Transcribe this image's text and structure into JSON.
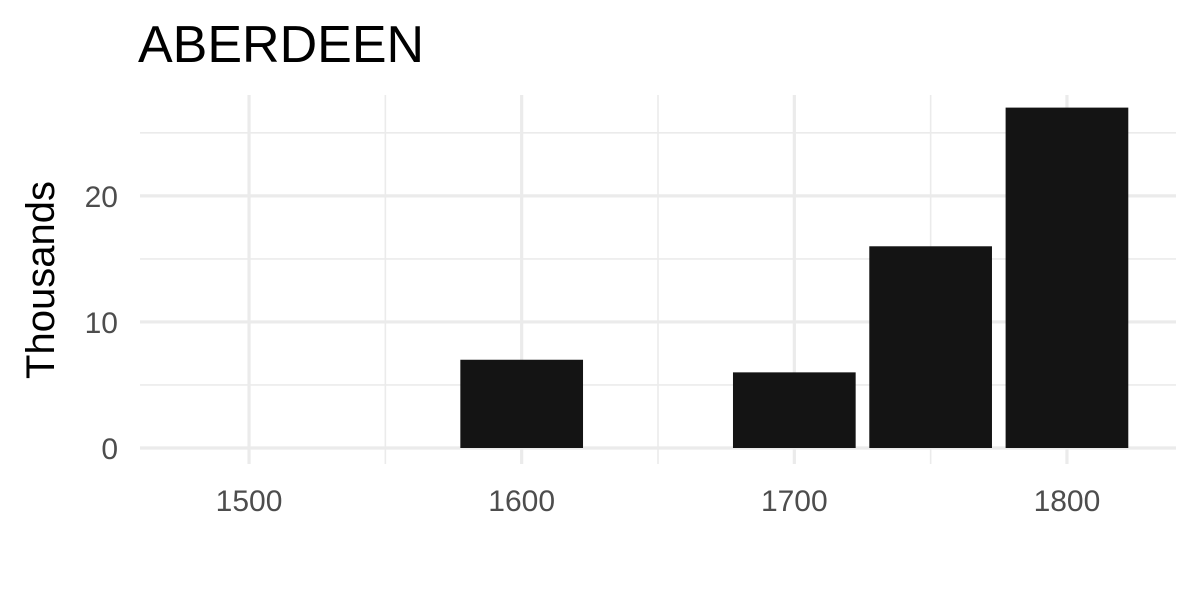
{
  "chart_data": {
    "type": "bar",
    "title": "ABERDEEN",
    "xlabel": "",
    "ylabel": "Thousands",
    "x": [
      1500,
      1550,
      1600,
      1650,
      1700,
      1750,
      1800
    ],
    "values": [
      0,
      0,
      7,
      0,
      6,
      16,
      27
    ],
    "xticks": [
      1500,
      1600,
      1700,
      1800
    ],
    "xlim": [
      1460,
      1840
    ],
    "yticks": [
      0,
      10,
      20
    ],
    "ylim": [
      0,
      28
    ],
    "bar_width": 45,
    "bar_color": "#141414",
    "grid": true,
    "legend": "none"
  }
}
